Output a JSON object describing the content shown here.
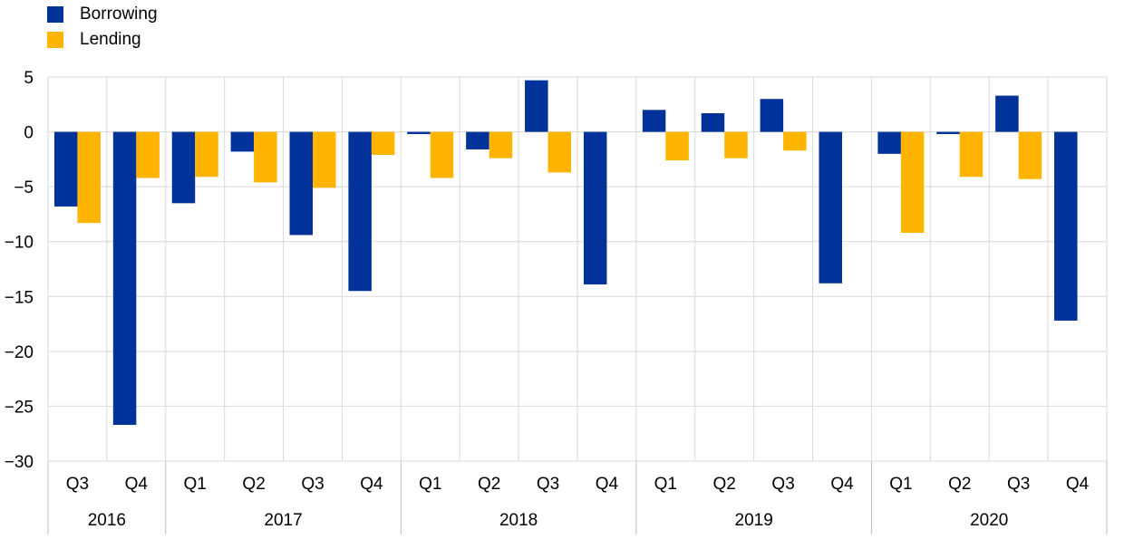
{
  "chart_data": {
    "type": "bar",
    "title": "",
    "xlabel": "",
    "ylabel": "",
    "ylim": [
      -30,
      5
    ],
    "yticks": [
      5,
      0,
      -5,
      -10,
      -15,
      -20,
      -25,
      -30
    ],
    "grid": true,
    "legend_position": "top-left",
    "categories": [
      "Q3",
      "Q4",
      "Q1",
      "Q2",
      "Q3",
      "Q4",
      "Q1",
      "Q2",
      "Q3",
      "Q4",
      "Q1",
      "Q2",
      "Q3",
      "Q4",
      "Q1",
      "Q2",
      "Q3",
      "Q4"
    ],
    "years": [
      {
        "label": "2016",
        "span": 2
      },
      {
        "label": "2017",
        "span": 4
      },
      {
        "label": "2018",
        "span": 4
      },
      {
        "label": "2019",
        "span": 4
      },
      {
        "label": "2020",
        "span": 4
      }
    ],
    "series": [
      {
        "name": "Borrowing",
        "color": "#003299",
        "values": [
          -6.8,
          -26.7,
          -6.5,
          -1.8,
          -9.4,
          -14.5,
          -0.2,
          -1.6,
          4.7,
          -13.9,
          2.0,
          1.7,
          3.0,
          -13.8,
          -2.0,
          -0.2,
          3.3,
          -17.2
        ]
      },
      {
        "name": "Lending",
        "color": "#FFB400",
        "values": [
          -8.3,
          -4.2,
          -4.1,
          -4.6,
          -5.1,
          -2.1,
          -4.2,
          -2.4,
          -3.7,
          0.0,
          -2.6,
          -2.4,
          -1.7,
          0.0,
          -9.2,
          -4.1,
          -4.3,
          0.0
        ]
      }
    ]
  }
}
